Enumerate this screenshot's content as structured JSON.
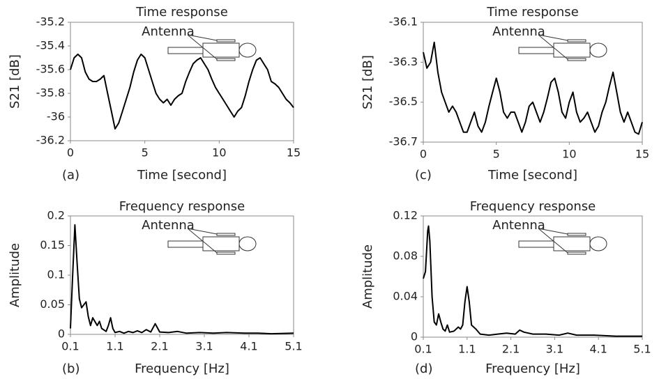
{
  "chart_data": [
    {
      "type": "line",
      "title": "Time response",
      "xlabel": "Time [second]",
      "ylabel": "S21 [dB]",
      "panel_label": "(a)",
      "annotation": "Antenna",
      "color": "#000000",
      "xlim": [
        0,
        15
      ],
      "xticks": [
        0,
        5,
        10,
        15
      ],
      "ylim": [
        -36.2,
        -35.2
      ],
      "yticks": [
        -35.2,
        -35.4,
        -35.6,
        -35.8,
        -36,
        -36.2
      ],
      "x": [
        0,
        0.25,
        0.5,
        0.75,
        1,
        1.25,
        1.5,
        1.75,
        2,
        2.25,
        2.5,
        2.75,
        3,
        3.25,
        3.5,
        3.75,
        4,
        4.25,
        4.5,
        4.75,
        5,
        5.25,
        5.5,
        5.75,
        6,
        6.25,
        6.5,
        6.75,
        7,
        7.25,
        7.5,
        7.75,
        8,
        8.25,
        8.5,
        8.75,
        9,
        9.25,
        9.5,
        9.75,
        10,
        10.25,
        10.5,
        10.75,
        11,
        11.25,
        11.5,
        11.75,
        12,
        12.25,
        12.5,
        12.75,
        13,
        13.25,
        13.5,
        13.75,
        14,
        14.25,
        14.5,
        14.75,
        15
      ],
      "values": [
        -35.6,
        -35.5,
        -35.47,
        -35.5,
        -35.62,
        -35.68,
        -35.7,
        -35.7,
        -35.68,
        -35.65,
        -35.8,
        -35.95,
        -36.1,
        -36.05,
        -35.95,
        -35.85,
        -35.75,
        -35.62,
        -35.52,
        -35.47,
        -35.5,
        -35.6,
        -35.7,
        -35.8,
        -35.85,
        -35.88,
        -35.85,
        -35.9,
        -35.85,
        -35.82,
        -35.8,
        -35.7,
        -35.62,
        -35.55,
        -35.52,
        -35.5,
        -35.55,
        -35.6,
        -35.68,
        -35.75,
        -35.8,
        -35.85,
        -35.9,
        -35.95,
        -36.0,
        -35.95,
        -35.92,
        -35.82,
        -35.7,
        -35.6,
        -35.52,
        -35.5,
        -35.55,
        -35.6,
        -35.7,
        -35.72,
        -35.75,
        -35.8,
        -35.85,
        -35.88,
        -35.92
      ]
    },
    {
      "type": "line",
      "title": "Time response",
      "xlabel": "Time [second]",
      "ylabel": "S21 [dB]",
      "panel_label": "(c)",
      "annotation": "Antenna",
      "color": "#000000",
      "xlim": [
        0,
        15
      ],
      "xticks": [
        0,
        5,
        10,
        15
      ],
      "ylim": [
        -36.7,
        -36.1
      ],
      "yticks": [
        -36.1,
        -36.3,
        -36.5,
        -36.7
      ],
      "x": [
        0,
        0.25,
        0.5,
        0.75,
        1,
        1.25,
        1.5,
        1.75,
        2,
        2.25,
        2.5,
        2.75,
        3,
        3.25,
        3.5,
        3.75,
        4,
        4.25,
        4.5,
        4.75,
        5,
        5.25,
        5.5,
        5.75,
        6,
        6.25,
        6.5,
        6.75,
        7,
        7.25,
        7.5,
        7.75,
        8,
        8.25,
        8.5,
        8.75,
        9,
        9.25,
        9.5,
        9.75,
        10,
        10.25,
        10.5,
        10.75,
        11,
        11.25,
        11.5,
        11.75,
        12,
        12.25,
        12.5,
        12.75,
        13,
        13.25,
        13.5,
        13.75,
        14,
        14.25,
        14.5,
        14.75,
        15
      ],
      "values": [
        -36.25,
        -36.33,
        -36.3,
        -36.2,
        -36.35,
        -36.45,
        -36.5,
        -36.55,
        -36.52,
        -36.55,
        -36.6,
        -36.65,
        -36.65,
        -36.6,
        -36.55,
        -36.62,
        -36.65,
        -36.6,
        -36.52,
        -36.45,
        -36.38,
        -36.45,
        -36.55,
        -36.58,
        -36.55,
        -36.55,
        -36.6,
        -36.65,
        -36.6,
        -36.52,
        -36.5,
        -36.55,
        -36.6,
        -36.55,
        -36.48,
        -36.4,
        -36.38,
        -36.45,
        -36.55,
        -36.58,
        -36.5,
        -36.45,
        -36.55,
        -36.6,
        -36.58,
        -36.55,
        -36.6,
        -36.65,
        -36.62,
        -36.55,
        -36.5,
        -36.42,
        -36.35,
        -36.45,
        -36.55,
        -36.6,
        -36.55,
        -36.6,
        -36.65,
        -36.66,
        -36.6
      ]
    },
    {
      "type": "line",
      "title": "Frequency response",
      "xlabel": "Frequency [Hz]",
      "ylabel": "Amplitude",
      "panel_label": "(b)",
      "annotation": "Antenna",
      "color": "#000000",
      "xlim": [
        0.1,
        5.1
      ],
      "xticks": [
        0.1,
        1.1,
        2.1,
        3.1,
        4.1,
        5.1
      ],
      "ylim": [
        0,
        0.2
      ],
      "yticks": [
        0,
        0.05,
        0.1,
        0.15,
        0.2
      ],
      "x": [
        0.1,
        0.15,
        0.2,
        0.25,
        0.3,
        0.35,
        0.4,
        0.45,
        0.5,
        0.55,
        0.6,
        0.7,
        0.75,
        0.8,
        0.9,
        0.95,
        1.0,
        1.05,
        1.1,
        1.2,
        1.3,
        1.4,
        1.5,
        1.6,
        1.7,
        1.8,
        1.9,
        2.0,
        2.1,
        2.3,
        2.5,
        2.7,
        3.0,
        3.3,
        3.6,
        4.0,
        4.3,
        4.6,
        5.1
      ],
      "values": [
        0.01,
        0.1,
        0.185,
        0.12,
        0.06,
        0.045,
        0.05,
        0.055,
        0.03,
        0.015,
        0.028,
        0.015,
        0.022,
        0.01,
        0.005,
        0.015,
        0.028,
        0.01,
        0.003,
        0.005,
        0.002,
        0.005,
        0.003,
        0.006,
        0.003,
        0.008,
        0.004,
        0.018,
        0.004,
        0.003,
        0.005,
        0.002,
        0.003,
        0.002,
        0.003,
        0.002,
        0.002,
        0.001,
        0.002
      ]
    },
    {
      "type": "line",
      "title": "Frequency response",
      "xlabel": "Frequency [Hz]",
      "ylabel": "Amplitude",
      "panel_label": "(d)",
      "annotation": "Antenna",
      "color": "#000000",
      "xlim": [
        0.1,
        5.1
      ],
      "xticks": [
        0.1,
        1.1,
        2.1,
        3.1,
        4.1,
        5.1
      ],
      "ylim": [
        0,
        0.12
      ],
      "yticks": [
        0,
        0.04,
        0.08,
        0.12
      ],
      "x": [
        0.1,
        0.15,
        0.2,
        0.22,
        0.25,
        0.3,
        0.35,
        0.4,
        0.45,
        0.5,
        0.55,
        0.6,
        0.65,
        0.7,
        0.8,
        0.9,
        0.95,
        1.0,
        1.05,
        1.1,
        1.15,
        1.2,
        1.3,
        1.4,
        1.6,
        1.8,
        2.0,
        2.2,
        2.3,
        2.4,
        2.6,
        2.9,
        3.2,
        3.4,
        3.6,
        4.0,
        4.5,
        5.1
      ],
      "values": [
        0.058,
        0.065,
        0.105,
        0.11,
        0.095,
        0.04,
        0.015,
        0.012,
        0.023,
        0.015,
        0.008,
        0.006,
        0.012,
        0.005,
        0.006,
        0.01,
        0.008,
        0.012,
        0.035,
        0.05,
        0.035,
        0.012,
        0.008,
        0.003,
        0.002,
        0.003,
        0.004,
        0.003,
        0.007,
        0.005,
        0.003,
        0.003,
        0.002,
        0.004,
        0.002,
        0.002,
        0.001,
        0.001
      ]
    }
  ]
}
